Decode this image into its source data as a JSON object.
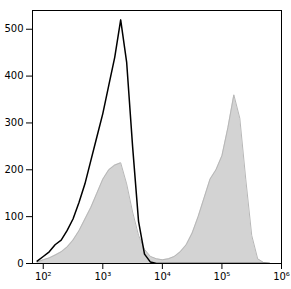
{
  "chart_data": {
    "type": "line",
    "log": "x",
    "grid": false,
    "xlim": [
      66,
      1000000
    ],
    "ylim": [
      0,
      540
    ],
    "xticks": [
      {
        "value": 100,
        "label": "10²"
      },
      {
        "value": 1000,
        "label": "10³"
      },
      {
        "value": 10000,
        "label": "10⁴"
      },
      {
        "value": 100000,
        "label": "10⁵"
      },
      {
        "value": 1000000,
        "label": "10⁶"
      }
    ],
    "yticks": [
      0,
      100,
      200,
      300,
      400,
      500
    ],
    "x": [
      79,
      100,
      126,
      158,
      200,
      251,
      316,
      398,
      501,
      631,
      794,
      1000,
      1259,
      1585,
      1995,
      2512,
      3162,
      3981,
      5012,
      6310,
      7943,
      10000,
      12589,
      15849,
      19953,
      25119,
      31623,
      39811,
      50119,
      63096,
      79433,
      100000,
      125893,
      158489,
      199526,
      251189,
      316228,
      398107,
      501187,
      630957
    ],
    "series": [
      {
        "type": "area",
        "color": "#d3d3d3",
        "values": [
          3,
          8,
          12,
          18,
          25,
          35,
          50,
          70,
          95,
          120,
          150,
          180,
          200,
          210,
          215,
          170,
          110,
          60,
          30,
          15,
          10,
          8,
          10,
          15,
          25,
          40,
          65,
          100,
          140,
          180,
          200,
          230,
          290,
          360,
          310,
          180,
          60,
          10,
          2,
          0
        ]
      },
      {
        "type": "line",
        "color": "#000000",
        "values": [
          5,
          15,
          25,
          40,
          50,
          70,
          95,
          130,
          170,
          220,
          270,
          320,
          380,
          440,
          520,
          430,
          250,
          90,
          20,
          3,
          0,
          0,
          0,
          0,
          0,
          0,
          0,
          0,
          0,
          0,
          0,
          0,
          0,
          0,
          0,
          0,
          0,
          0,
          0,
          0
        ]
      }
    ]
  }
}
